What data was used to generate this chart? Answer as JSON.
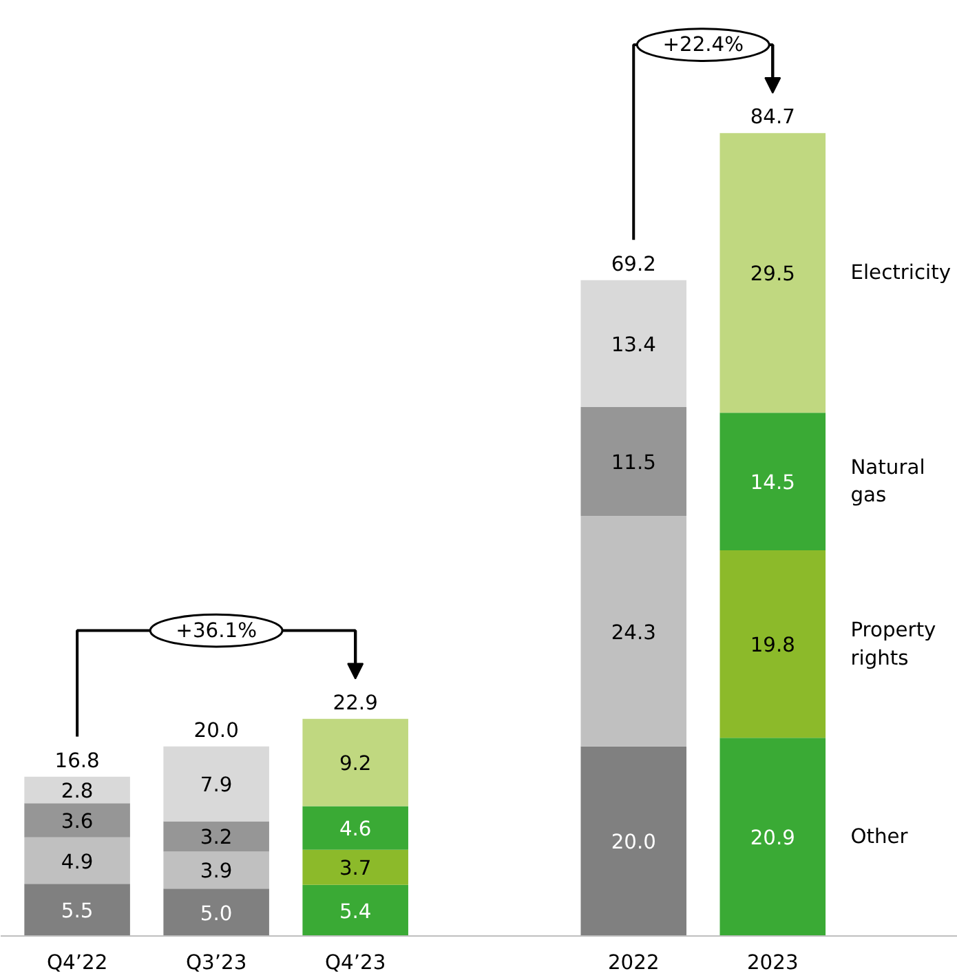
{
  "chart_data": {
    "type": "bar",
    "stacked": true,
    "legend": false,
    "categories": [
      "Q4’22",
      "Q3’23",
      "Q4’23",
      null,
      "2022",
      "2023"
    ],
    "series": [
      {
        "name": "Other",
        "values": [
          5.5,
          5.0,
          5.4,
          null,
          20.0,
          20.9
        ],
        "value_labels": [
          "5.5",
          "5.0",
          "5.4",
          null,
          "20.0",
          "20.9"
        ],
        "colors": [
          "#808080",
          "#808080",
          "#3aaa35",
          null,
          "#808080",
          "#3aaa35"
        ]
      },
      {
        "name": "Property rights",
        "values": [
          4.9,
          3.9,
          3.7,
          null,
          24.3,
          19.8
        ],
        "value_labels": [
          "4.9",
          "3.9",
          "3.7",
          null,
          "24.3",
          "19.8"
        ],
        "colors": [
          "#c0c0c0",
          "#c0c0c0",
          "#8cba2a",
          null,
          "#c0c0c0",
          "#8cba2a"
        ]
      },
      {
        "name": "Natural gas",
        "values": [
          3.6,
          3.2,
          4.6,
          null,
          11.5,
          14.5
        ],
        "value_labels": [
          "3.6",
          "3.2",
          "4.6",
          null,
          "11.5",
          "14.5"
        ],
        "colors": [
          "#969696",
          "#969696",
          "#3aaa35",
          null,
          "#969696",
          "#3aaa35"
        ]
      },
      {
        "name": "Electricity",
        "values": [
          2.8,
          7.9,
          9.2,
          null,
          13.4,
          29.5
        ],
        "value_labels": [
          "2.8",
          "7.9",
          "9.2",
          null,
          "13.4",
          "29.5"
        ],
        "colors": [
          "#d9d9d9",
          "#d9d9d9",
          "#c0d880",
          null,
          "#d9d9d9",
          "#c0d880"
        ]
      }
    ],
    "totals": [
      "16.8",
      "20.0",
      "22.9",
      null,
      "69.2",
      "84.7"
    ],
    "annotations": [
      "+36.1%",
      "+22.4%"
    ]
  }
}
